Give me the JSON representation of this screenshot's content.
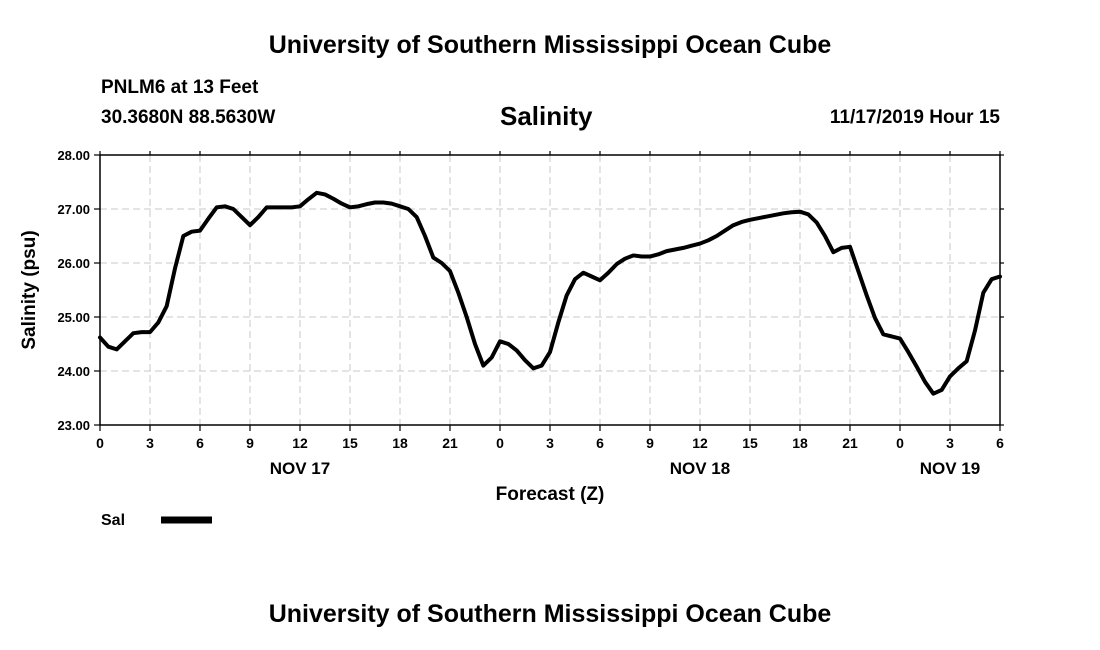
{
  "header": {
    "title": "University of Southern Mississippi Ocean Cube",
    "station": "PNLM6 at 13 Feet",
    "coords": "30.3680N 88.5630W",
    "run_time": "11/17/2019 Hour 15"
  },
  "footer": {
    "title": "University of Southern Mississippi Ocean Cube"
  },
  "chart_data": {
    "type": "line",
    "title": "Salinity",
    "xlabel": "Forecast (Z)",
    "ylabel": "Salinity (psu)",
    "ylim": [
      23.0,
      28.0
    ],
    "xlim": [
      0,
      54
    ],
    "yticks": [
      {
        "value": 23.0,
        "label": "23.00"
      },
      {
        "value": 24.0,
        "label": "24.00"
      },
      {
        "value": 25.0,
        "label": "25.00"
      },
      {
        "value": 26.0,
        "label": "26.00"
      },
      {
        "value": 27.0,
        "label": "27.00"
      },
      {
        "value": 28.0,
        "label": "28.00"
      }
    ],
    "xticks": [
      {
        "value": 0,
        "label": "0"
      },
      {
        "value": 3,
        "label": "3"
      },
      {
        "value": 6,
        "label": "6"
      },
      {
        "value": 9,
        "label": "9"
      },
      {
        "value": 12,
        "label": "12"
      },
      {
        "value": 15,
        "label": "15"
      },
      {
        "value": 18,
        "label": "18"
      },
      {
        "value": 21,
        "label": "21"
      },
      {
        "value": 24,
        "label": "0"
      },
      {
        "value": 27,
        "label": "3"
      },
      {
        "value": 30,
        "label": "6"
      },
      {
        "value": 33,
        "label": "9"
      },
      {
        "value": 36,
        "label": "12"
      },
      {
        "value": 39,
        "label": "15"
      },
      {
        "value": 42,
        "label": "18"
      },
      {
        "value": 45,
        "label": "21"
      },
      {
        "value": 48,
        "label": "0"
      },
      {
        "value": 51,
        "label": "3"
      },
      {
        "value": 54,
        "label": "6"
      }
    ],
    "date_labels": [
      {
        "value": 12,
        "label": "NOV 17"
      },
      {
        "value": 36,
        "label": "NOV 18"
      },
      {
        "value": 51,
        "label": "NOV 19"
      }
    ],
    "grid": true,
    "legend": [
      {
        "label": "Sal",
        "color": "#000000"
      }
    ],
    "series": [
      {
        "name": "Sal",
        "color": "#000000",
        "x": [
          0,
          0.5,
          1,
          1.5,
          2,
          2.5,
          3,
          3.5,
          4,
          4.5,
          5,
          5.5,
          6,
          6.5,
          7,
          7.5,
          8,
          8.5,
          9,
          9.5,
          10,
          10.5,
          11,
          11.5,
          12,
          12.5,
          13,
          13.5,
          14,
          14.5,
          15,
          15.5,
          16,
          16.5,
          17,
          17.5,
          18,
          18.5,
          19,
          19.5,
          20,
          20.5,
          21,
          21.5,
          22,
          22.5,
          23,
          23.5,
          24,
          24.5,
          25,
          25.5,
          26,
          26.5,
          27,
          27.5,
          28,
          28.5,
          29,
          29.5,
          30,
          30.5,
          31,
          31.5,
          32,
          32.5,
          33,
          33.5,
          34,
          34.5,
          35,
          35.5,
          36,
          36.5,
          37,
          37.5,
          38,
          38.5,
          39,
          39.5,
          40,
          40.5,
          41,
          41.5,
          42,
          42.5,
          43,
          43.5,
          44,
          44.5,
          45,
          45.5,
          46,
          46.5,
          47,
          47.5,
          48,
          48.5,
          49,
          49.5,
          50,
          50.5,
          51,
          51.5,
          52,
          52.5,
          53,
          53.5,
          54
        ],
        "values": [
          24.62,
          24.45,
          24.4,
          24.55,
          24.7,
          24.72,
          24.72,
          24.9,
          25.2,
          25.9,
          26.5,
          26.58,
          26.6,
          26.82,
          27.03,
          27.05,
          27.0,
          26.85,
          26.7,
          26.85,
          27.03,
          27.03,
          27.03,
          27.03,
          27.05,
          27.18,
          27.3,
          27.27,
          27.19,
          27.1,
          27.03,
          27.05,
          27.09,
          27.12,
          27.12,
          27.1,
          27.05,
          27.0,
          26.85,
          26.5,
          26.1,
          26.0,
          25.85,
          25.45,
          25.0,
          24.5,
          24.1,
          24.25,
          24.55,
          24.5,
          24.38,
          24.2,
          24.05,
          24.1,
          24.35,
          24.9,
          25.4,
          25.7,
          25.82,
          25.75,
          25.68,
          25.82,
          25.98,
          26.08,
          26.14,
          26.12,
          26.12,
          26.16,
          26.22,
          26.25,
          26.28,
          26.32,
          26.36,
          26.42,
          26.5,
          26.6,
          26.7,
          26.76,
          26.8,
          26.83,
          26.86,
          26.89,
          26.92,
          26.94,
          26.95,
          26.9,
          26.75,
          26.5,
          26.2,
          26.28,
          26.3,
          25.85,
          25.4,
          24.98,
          24.68,
          24.64,
          24.6,
          24.35,
          24.08,
          23.8,
          23.58,
          23.65,
          23.9,
          24.05,
          24.18,
          24.75,
          25.45,
          25.7,
          25.75
        ]
      }
    ]
  }
}
